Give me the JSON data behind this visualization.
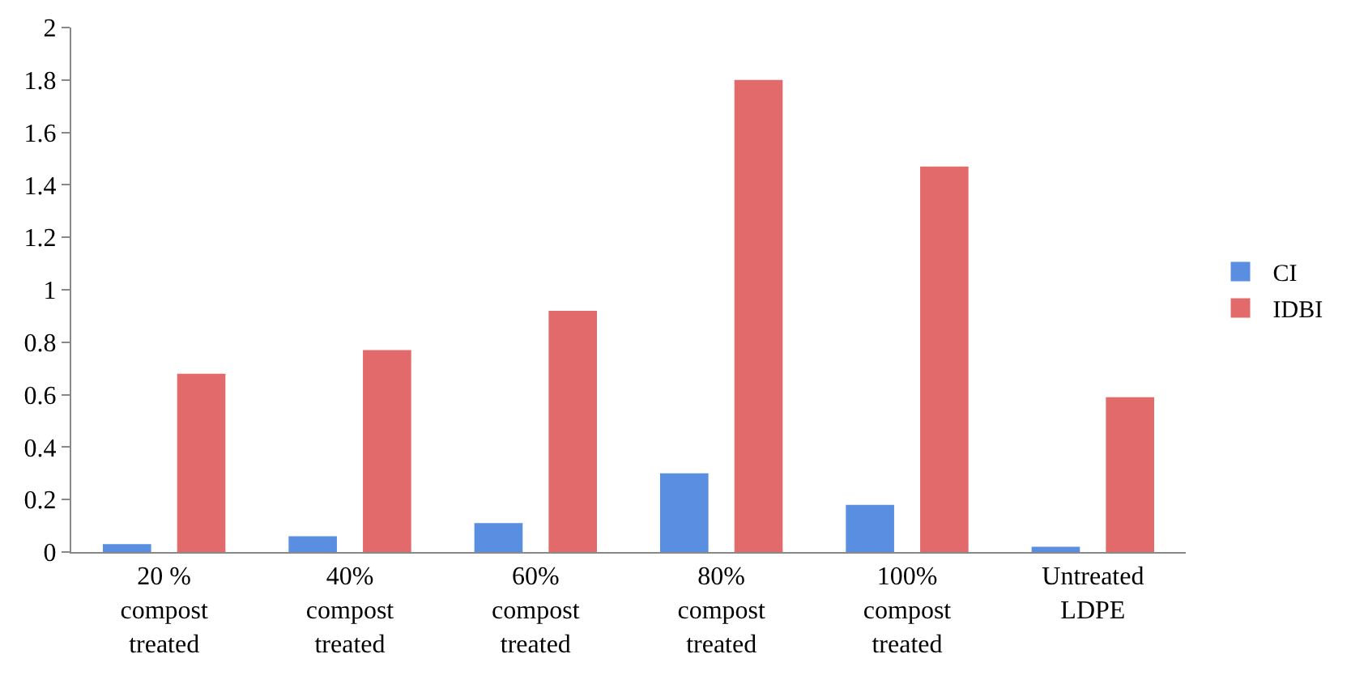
{
  "chart_data": {
    "type": "bar",
    "categories": [
      "20 %\ncompost\ntreated",
      "40%\ncompost\ntreated",
      "60%\ncompost\ntreated",
      "80%\ncompost\ntreated",
      "100%\ncompost\ntreated",
      "Untreated\nLDPE"
    ],
    "series": [
      {
        "name": "CI",
        "color": "#5a8ee0",
        "values": [
          0.03,
          0.06,
          0.11,
          0.3,
          0.18,
          0.02
        ]
      },
      {
        "name": "IDBI",
        "color": "#e26a6a",
        "values": [
          0.68,
          0.77,
          0.92,
          1.8,
          1.47,
          0.59
        ]
      }
    ],
    "ylim": [
      0,
      2
    ],
    "yticks": [
      0,
      0.2,
      0.4,
      0.6,
      0.8,
      1,
      1.2,
      1.4,
      1.6,
      1.8,
      2
    ],
    "grid": false,
    "legend": "right"
  }
}
